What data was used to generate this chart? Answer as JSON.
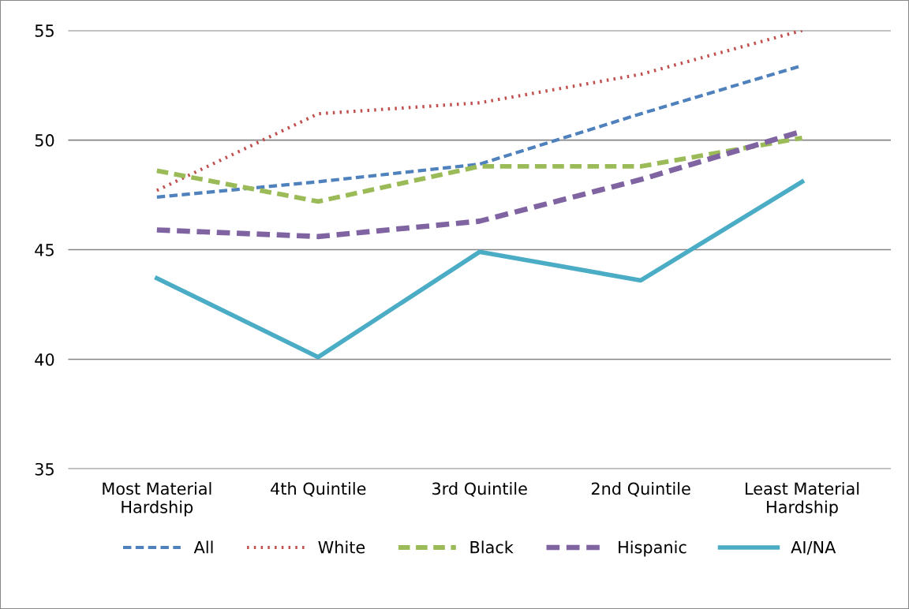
{
  "chart_data": {
    "type": "line",
    "categories": [
      "Most Material\nHardship",
      "4th Quintile",
      "3rd Quintile",
      "2nd Quintile",
      "Least Material\nHardship"
    ],
    "series": [
      {
        "name": "All",
        "color": "#4f81bd",
        "line_style": "dashed",
        "values": [
          47.4,
          48.1,
          48.9,
          51.2,
          53.4
        ]
      },
      {
        "name": "White",
        "color": "#c0504d",
        "line_style": "dotted",
        "values": [
          47.7,
          51.2,
          51.7,
          53.0,
          55.0
        ]
      },
      {
        "name": "Black",
        "color": "#9bbb59",
        "line_style": "dashed",
        "values": [
          48.6,
          47.2,
          48.8,
          48.8,
          50.1
        ]
      },
      {
        "name": "Hispanic",
        "color": "#8064a2",
        "line_style": "dashed",
        "values": [
          45.9,
          45.6,
          46.3,
          48.2,
          50.4
        ]
      },
      {
        "name": "AI/NA",
        "color": "#4bacc6",
        "line_style": "solid",
        "values": [
          43.7,
          40.1,
          44.9,
          43.6,
          48.1
        ]
      }
    ],
    "ylim": [
      35,
      55
    ],
    "yticks": [
      35,
      40,
      45,
      50,
      55
    ],
    "grid": "y",
    "legend": "bottom",
    "marker": "none"
  }
}
